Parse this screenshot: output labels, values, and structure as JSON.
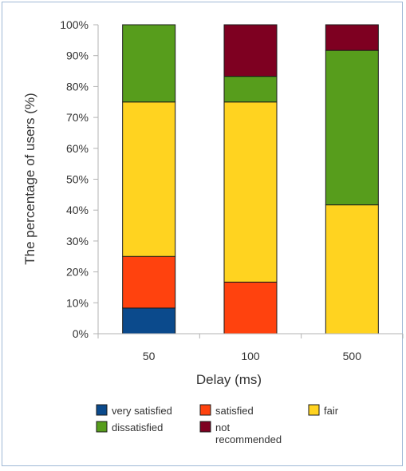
{
  "chart_data": {
    "type": "bar",
    "stacked": true,
    "title": "",
    "xlabel": "Delay (ms)",
    "ylabel": "The percentage of users (%)",
    "categories": [
      "50",
      "100",
      "500"
    ],
    "ylim": [
      0,
      100
    ],
    "yticks": [
      "0%",
      "10%",
      "20%",
      "30%",
      "40%",
      "50%",
      "60%",
      "70%",
      "80%",
      "90%",
      "100%"
    ],
    "grid": false,
    "legend_position": "bottom",
    "series": [
      {
        "name": "very satisfied",
        "color": "#0b4a8c",
        "values": [
          8.3,
          0,
          0
        ]
      },
      {
        "name": "satisfied",
        "color": "#ff420e",
        "values": [
          16.7,
          16.7,
          0
        ]
      },
      {
        "name": "fair",
        "color": "#ffd320",
        "values": [
          50,
          58.3,
          41.7
        ]
      },
      {
        "name": "dissatisfied",
        "color": "#579d1c",
        "values": [
          25,
          8.3,
          50
        ]
      },
      {
        "name": "not recommended",
        "color": "#7e0021",
        "values": [
          0,
          16.7,
          8.3
        ]
      }
    ]
  }
}
